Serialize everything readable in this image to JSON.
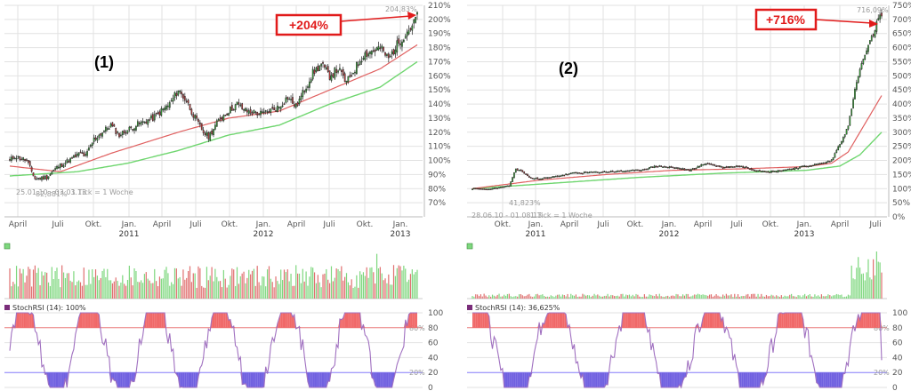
{
  "chart_data": [
    {
      "type": "candlestick",
      "label": "(1)",
      "callout": "+204%",
      "last_value_label": "204,83%",
      "min_label": "82,881%",
      "date_range": "25.01.10 - 03.03.13",
      "tick_info": "1 Tick = 1 Woche",
      "ylim": [
        60,
        210
      ],
      "y_ticks": [
        "70%",
        "80%",
        "90%",
        "100%",
        "110%",
        "120%",
        "130%",
        "140%",
        "150%",
        "160%",
        "170%",
        "180%",
        "190%",
        "200%",
        "210%"
      ],
      "x_ticks": [
        "April",
        "Juli",
        "Okt.",
        "Jan.",
        "April",
        "Juli",
        "Okt.",
        "Jan.",
        "April",
        "Juli",
        "Okt.",
        "Jan."
      ],
      "years": [
        "2011",
        "2012",
        "2013"
      ],
      "close_anchors": [
        [
          0,
          100
        ],
        [
          3,
          103
        ],
        [
          10,
          100
        ],
        [
          15,
          87
        ],
        [
          22,
          88
        ],
        [
          28,
          95
        ],
        [
          35,
          100
        ],
        [
          42,
          105
        ],
        [
          45,
          103
        ],
        [
          50,
          115
        ],
        [
          60,
          125
        ],
        [
          65,
          118
        ],
        [
          75,
          125
        ],
        [
          85,
          130
        ],
        [
          95,
          140
        ],
        [
          100,
          150
        ],
        [
          105,
          142
        ],
        [
          110,
          130
        ],
        [
          115,
          120
        ],
        [
          118,
          117
        ],
        [
          125,
          130
        ],
        [
          135,
          140
        ],
        [
          140,
          135
        ],
        [
          150,
          133
        ],
        [
          160,
          138
        ],
        [
          165,
          145
        ],
        [
          170,
          138
        ],
        [
          175,
          150
        ],
        [
          180,
          162
        ],
        [
          185,
          168
        ],
        [
          190,
          160
        ],
        [
          195,
          165
        ],
        [
          200,
          155
        ],
        [
          205,
          165
        ],
        [
          210,
          175
        ],
        [
          220,
          180
        ],
        [
          225,
          172
        ],
        [
          230,
          182
        ],
        [
          235,
          190
        ],
        [
          240,
          197
        ],
        [
          242,
          205
        ]
      ],
      "ma_red": [
        [
          0,
          96
        ],
        [
          30,
          92
        ],
        [
          60,
          105
        ],
        [
          100,
          120
        ],
        [
          130,
          130
        ],
        [
          160,
          135
        ],
        [
          190,
          150
        ],
        [
          220,
          165
        ],
        [
          242,
          182
        ]
      ],
      "ma_green": [
        [
          0,
          89
        ],
        [
          40,
          92
        ],
        [
          70,
          98
        ],
        [
          100,
          107
        ],
        [
          130,
          118
        ],
        [
          160,
          125
        ],
        [
          190,
          140
        ],
        [
          220,
          152
        ],
        [
          242,
          170
        ]
      ],
      "indicator_label": "StochRSI (14): 100%",
      "indicator_ticks": [
        "0",
        "20",
        "40",
        "60",
        "80",
        "100"
      ],
      "indicator_ref_labels": [
        "80%",
        "20%"
      ]
    },
    {
      "type": "candlestick",
      "label": "(2)",
      "callout": "+716%",
      "last_value_label": "716,09%",
      "min_label": "41,823%",
      "date_range": "28.06.10 - 01.08.13",
      "tick_info": "1 Tick = 1 Woche",
      "ylim": [
        0,
        750
      ],
      "y_ticks": [
        "0%",
        "50%",
        "100%",
        "150%",
        "200%",
        "250%",
        "300%",
        "350%",
        "400%",
        "450%",
        "500%",
        "550%",
        "600%",
        "650%",
        "700%",
        "750%"
      ],
      "x_ticks": [
        "Okt.",
        "Jan.",
        "April",
        "Juli",
        "Okt.",
        "Jan.",
        "April",
        "Juli",
        "Okt.",
        "Jan.",
        "April",
        "Juli"
      ],
      "years": [
        "2011",
        "2012",
        "2013"
      ],
      "close_anchors": [
        [
          0,
          100
        ],
        [
          10,
          98
        ],
        [
          18,
          105
        ],
        [
          22,
          110
        ],
        [
          26,
          170
        ],
        [
          30,
          160
        ],
        [
          33,
          145
        ],
        [
          36,
          135
        ],
        [
          45,
          138
        ],
        [
          60,
          155
        ],
        [
          80,
          160
        ],
        [
          100,
          165
        ],
        [
          110,
          180
        ],
        [
          120,
          175
        ],
        [
          130,
          165
        ],
        [
          140,
          190
        ],
        [
          150,
          175
        ],
        [
          160,
          180
        ],
        [
          170,
          165
        ],
        [
          180,
          160
        ],
        [
          190,
          170
        ],
        [
          200,
          180
        ],
        [
          210,
          190
        ],
        [
          215,
          200
        ],
        [
          220,
          260
        ],
        [
          225,
          320
        ],
        [
          228,
          420
        ],
        [
          231,
          500
        ],
        [
          234,
          560
        ],
        [
          237,
          600
        ],
        [
          240,
          650
        ],
        [
          243,
          700
        ],
        [
          245,
          712
        ]
      ],
      "ma_red": [
        [
          0,
          100
        ],
        [
          40,
          130
        ],
        [
          80,
          150
        ],
        [
          120,
          165
        ],
        [
          160,
          170
        ],
        [
          200,
          178
        ],
        [
          215,
          190
        ],
        [
          225,
          230
        ],
        [
          235,
          330
        ],
        [
          245,
          430
        ]
      ],
      "ma_green": [
        [
          0,
          100
        ],
        [
          50,
          120
        ],
        [
          100,
          140
        ],
        [
          150,
          155
        ],
        [
          200,
          165
        ],
        [
          220,
          180
        ],
        [
          232,
          220
        ],
        [
          245,
          300
        ]
      ],
      "indicator_label": "StochRSI (14): 36,625%",
      "indicator_ticks": [
        "0",
        "20",
        "40",
        "60",
        "80",
        "100"
      ],
      "indicator_ref_labels": [
        "80%",
        "20%"
      ]
    }
  ],
  "colors": {
    "up": "#3dbb3d",
    "down": "#d94040",
    "ma_red": "#e06060",
    "ma_green": "#6fd66f",
    "callout": "#e11b1b",
    "stoch_line": "#a070c0",
    "stoch_high": "#f06868",
    "stoch_low": "#7060e0",
    "ref_line_80": "#f08080",
    "ref_line_20": "#8a80ff"
  }
}
